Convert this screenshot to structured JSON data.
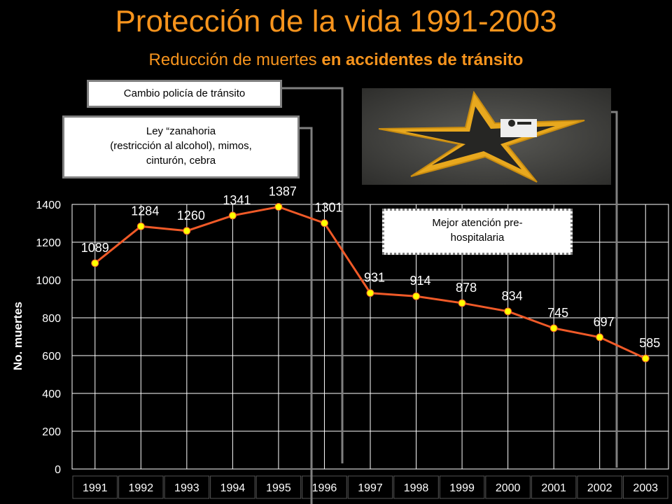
{
  "title": "Protección de la vida 1991-2003",
  "subtitle_part1": "Reducción de muertes ",
  "subtitle_part2": "en accidentes de tránsito",
  "annotations": {
    "cambio": "Cambio policía de tránsito",
    "ley_line1": "Ley “zanahoria",
    "ley_line2": "(restricción al alcohol), mimos,",
    "ley_line3": "cinturón, cebra",
    "mejor_line1": "Mejor atención pre-",
    "mejor_line2": "hospitalaria"
  },
  "colors": {
    "title": "#f7941d",
    "line": "#f05a28",
    "marker": "#ffff00"
  },
  "chart_data": {
    "type": "line",
    "x": [
      "1991",
      "1992",
      "1993",
      "1994",
      "1995",
      "1996",
      "1997",
      "1998",
      "1999",
      "2000",
      "2001",
      "2002",
      "2003"
    ],
    "series": [
      {
        "values": [
          1089,
          1284,
          1260,
          1341,
          1387,
          1301,
          931,
          914,
          878,
          834,
          745,
          697,
          585
        ]
      }
    ],
    "ylabel": "No. muertes",
    "ylim": [
      0,
      1400
    ],
    "yticks": [
      0,
      200,
      400,
      600,
      800,
      1000,
      1200,
      1400
    ],
    "data_labels": true,
    "grid": true
  }
}
